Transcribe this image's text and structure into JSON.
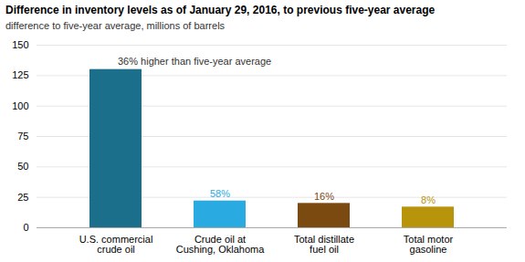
{
  "chart_data": {
    "type": "bar",
    "title": "Difference in inventory levels as of January 29, 2016, to previous five-year average",
    "subtitle": "difference  to five-year  average,  millions of barrels",
    "categories": [
      "U.S. commercial\ncrude oil",
      "Crude oil at\nCushing, Oklahoma",
      "Total distillate\nfuel oil",
      "Total motor\ngasoline"
    ],
    "values": [
      130,
      22,
      20,
      17
    ],
    "colors": [
      "#1b6f8a",
      "#29abe2",
      "#7b4a10",
      "#b8940a"
    ],
    "annotations": [
      {
        "text": "36% higher than five-year average",
        "category": "U.S. commercial\ncrude oil",
        "color": "#333333"
      },
      {
        "text": "58%",
        "category": "Crude oil at\nCushing, Oklahoma",
        "color": "#29abe2"
      },
      {
        "text": "16%",
        "category": "Total distillate\nfuel oil",
        "color": "#7b4a10"
      },
      {
        "text": "8%",
        "category": "Total motor\ngasoline",
        "color": "#b8940a"
      }
    ],
    "ylim": [
      0,
      150
    ],
    "yticks": [
      0,
      25,
      50,
      75,
      100,
      125,
      150
    ],
    "grid": true
  }
}
